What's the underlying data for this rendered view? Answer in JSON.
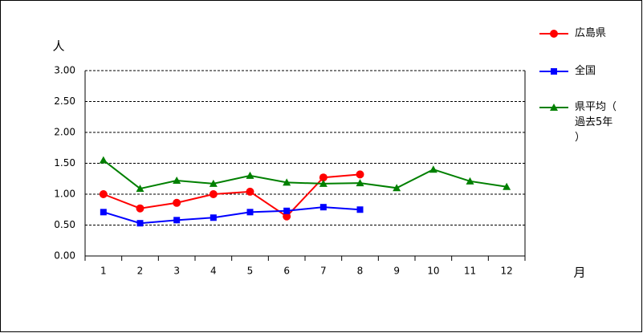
{
  "chart_data": {
    "type": "line",
    "y_unit_label": "人",
    "x_axis_label": "月",
    "categories": [
      "1",
      "2",
      "3",
      "4",
      "5",
      "6",
      "7",
      "8",
      "9",
      "10",
      "11",
      "12"
    ],
    "series": [
      {
        "name": "広島県",
        "color": "#ff0000",
        "marker": "circle",
        "values": [
          1.0,
          0.77,
          0.86,
          1.0,
          1.04,
          0.64,
          1.27,
          1.32,
          null,
          null,
          null,
          null
        ]
      },
      {
        "name": "全国",
        "color": "#0000ff",
        "marker": "square",
        "values": [
          0.71,
          0.53,
          0.58,
          0.62,
          0.71,
          0.73,
          0.79,
          0.75,
          null,
          null,
          null,
          null
        ]
      },
      {
        "name": "県平均（過去5年）",
        "color": "#008000",
        "marker": "triangle",
        "values": [
          1.55,
          1.09,
          1.22,
          1.17,
          1.3,
          1.19,
          1.17,
          1.18,
          1.1,
          1.4,
          1.21,
          1.12
        ]
      }
    ],
    "ylim": [
      0,
      3
    ],
    "yticks": [
      {
        "value": 0,
        "label": "0.00"
      },
      {
        "value": 0.5,
        "label": "0.50"
      },
      {
        "value": 1,
        "label": "1.00"
      },
      {
        "value": 1.5,
        "label": "1.50"
      },
      {
        "value": 2,
        "label": "2.00"
      },
      {
        "value": 2.5,
        "label": "2.50"
      },
      {
        "value": 3,
        "label": "3.00"
      }
    ],
    "grid": true
  }
}
